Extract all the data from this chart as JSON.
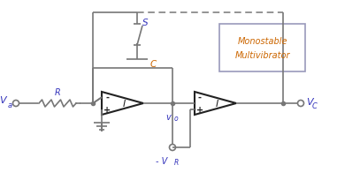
{
  "bg_color": "#ffffff",
  "line_color": "#777777",
  "dashed_color": "#777777",
  "triangle_color": "#222222",
  "text_blue": "#3333bb",
  "text_orange": "#cc6600",
  "box_edge": "#9999bb",
  "figsize": [
    3.81,
    2.05
  ],
  "dpi": 100,
  "labels": {
    "Va": "V",
    "Va_sub": "a",
    "R": "R",
    "C": "C",
    "S": "S",
    "Vo": "v",
    "Vo_sub": "o",
    "VR_pre": "- V",
    "VR_sub": "R",
    "VC": "V",
    "VC_sub": "C",
    "mono1": "Monostable",
    "mono2": "Multivibrator",
    "I1": "I",
    "I2": "I",
    "gnd": "⊥"
  }
}
